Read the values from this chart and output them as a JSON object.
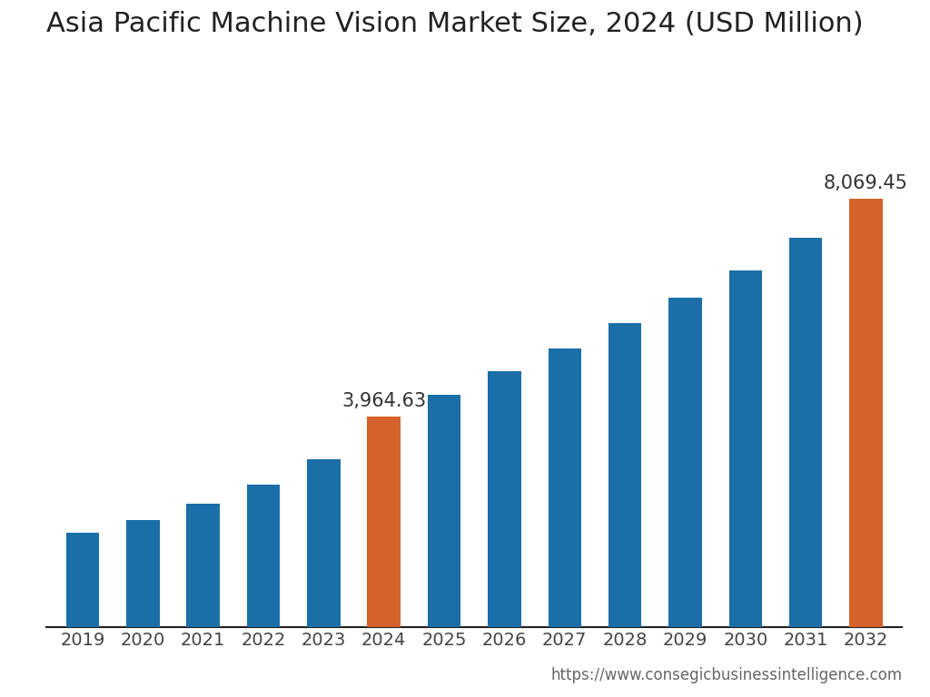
{
  "title": "Asia Pacific Machine Vision Market Size, 2024 (USD Million)",
  "years": [
    "2019",
    "2020",
    "2021",
    "2022",
    "2023",
    "2024",
    "2025",
    "2026",
    "2027",
    "2028",
    "2029",
    "2030",
    "2031",
    "2032"
  ],
  "values": [
    1780,
    2020,
    2330,
    2680,
    3170,
    3964.63,
    4370,
    4830,
    5250,
    5720,
    6200,
    6720,
    7330,
    8069.45
  ],
  "bar_colors": [
    "#1b6fa8",
    "#1b6fa8",
    "#1b6fa8",
    "#1b6fa8",
    "#1b6fa8",
    "#d4622a",
    "#1b6fa8",
    "#1b6fa8",
    "#1b6fa8",
    "#1b6fa8",
    "#1b6fa8",
    "#1b6fa8",
    "#1b6fa8",
    "#d4622a"
  ],
  "labeled_bars": [
    5,
    13
  ],
  "labeled_values": [
    "3,964.63",
    "8,069.45"
  ],
  "url_text": "https://www.consegicbusinessintelligence.com",
  "background_color": "#ffffff",
  "title_fontsize": 22,
  "tick_fontsize": 14,
  "label_fontsize": 15,
  "url_fontsize": 12,
  "ylim": [
    0,
    10500
  ]
}
